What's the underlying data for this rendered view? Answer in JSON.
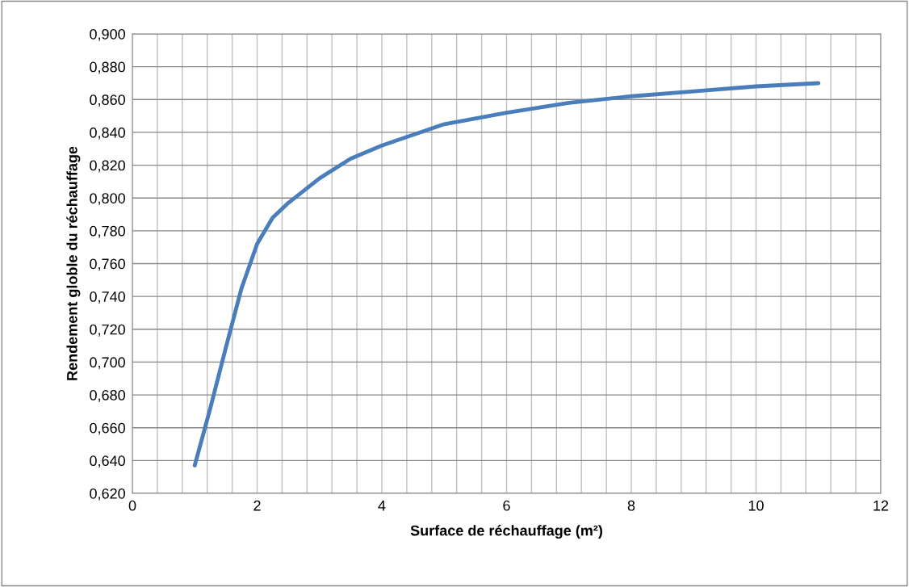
{
  "chart_data": {
    "type": "line",
    "xlabel": "Surface de réchauffage (m²)",
    "ylabel": "Rendement globle du réchauffage",
    "x": [
      1,
      1.25,
      1.5,
      1.75,
      2,
      2.25,
      2.5,
      3,
      3.5,
      4,
      5,
      6,
      7,
      8,
      9,
      10,
      11
    ],
    "series": [
      {
        "color": "#4a7ebb",
        "values": [
          0.637,
          0.672,
          0.709,
          0.745,
          0.772,
          0.788,
          0.797,
          0.812,
          0.824,
          0.832,
          0.845,
          0.852,
          0.858,
          0.862,
          0.865,
          0.868,
          0.87
        ]
      }
    ],
    "xlim": [
      0,
      12
    ],
    "xticks": [
      0,
      2,
      4,
      6,
      8,
      10,
      12
    ],
    "ylim": [
      0.62,
      0.9
    ],
    "yticks": [
      {
        "value": 0.62,
        "label": "0,620"
      },
      {
        "value": 0.64,
        "label": "0,640"
      },
      {
        "value": 0.66,
        "label": "0,660"
      },
      {
        "value": 0.68,
        "label": "0,680"
      },
      {
        "value": 0.7,
        "label": "0,700"
      },
      {
        "value": 0.72,
        "label": "0,720"
      },
      {
        "value": 0.74,
        "label": "0,740"
      },
      {
        "value": 0.76,
        "label": "0,760"
      },
      {
        "value": 0.78,
        "label": "0,780"
      },
      {
        "value": 0.8,
        "label": "0,800"
      },
      {
        "value": 0.82,
        "label": "0,820"
      },
      {
        "value": 0.84,
        "label": "0,840"
      },
      {
        "value": 0.86,
        "label": "0,860"
      },
      {
        "value": 0.88,
        "label": "0,880"
      },
      {
        "value": 0.9,
        "label": "0,900"
      }
    ],
    "grid": true,
    "marker": "none",
    "line_style": "solid",
    "legend": false
  }
}
